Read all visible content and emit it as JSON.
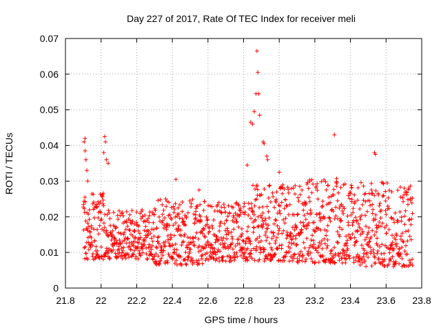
{
  "chart_data": {
    "type": "scatter",
    "title": "Day 227 of 2017, Rate Of TEC Index for receiver meli",
    "xlabel": "GPS time / hours",
    "ylabel": "ROTI / TECUs",
    "xlim": [
      21.8,
      23.8
    ],
    "ylim": [
      0,
      0.07
    ],
    "x_ticks": [
      "21.8",
      "22",
      "22.2",
      "22.4",
      "22.6",
      "22.8",
      "23",
      "23.2",
      "23.4",
      "23.6",
      "23.8"
    ],
    "y_ticks": [
      "0",
      "0.01",
      "0.02",
      "0.03",
      "0.04",
      "0.05",
      "0.06",
      "0.07"
    ],
    "grid": true,
    "marker": "+",
    "color": "#ff0000",
    "series": [
      {
        "name": "ROTI",
        "x_start": 21.9,
        "x_end": 23.75,
        "points": [
          [
            21.905,
            0.041
          ],
          [
            21.91,
            0.042
          ],
          [
            21.91,
            0.0385
          ],
          [
            21.915,
            0.036
          ],
          [
            21.92,
            0.033
          ],
          [
            21.925,
            0.03
          ],
          [
            22.02,
            0.0425
          ],
          [
            22.025,
            0.041
          ],
          [
            22.015,
            0.038
          ],
          [
            22.03,
            0.036
          ],
          [
            22.04,
            0.035
          ],
          [
            22.42,
            0.0305
          ],
          [
            22.55,
            0.0275
          ],
          [
            22.82,
            0.0345
          ],
          [
            22.84,
            0.0465
          ],
          [
            22.85,
            0.046
          ],
          [
            22.86,
            0.0495
          ],
          [
            22.87,
            0.0545
          ],
          [
            22.875,
            0.0665
          ],
          [
            22.88,
            0.0605
          ],
          [
            22.885,
            0.0545
          ],
          [
            22.89,
            0.0485
          ],
          [
            22.91,
            0.041
          ],
          [
            22.915,
            0.0405
          ],
          [
            22.93,
            0.037
          ],
          [
            22.935,
            0.036
          ],
          [
            23.0,
            0.0325
          ],
          [
            23.31,
            0.043
          ],
          [
            23.535,
            0.038
          ],
          [
            23.54,
            0.0375
          ]
        ],
        "bands": [
          {
            "x0": 21.9,
            "x1": 22.05,
            "low": 0.008,
            "high": 0.027
          },
          {
            "x0": 22.05,
            "x1": 22.3,
            "low": 0.008,
            "high": 0.022
          },
          {
            "x0": 22.3,
            "x1": 22.6,
            "low": 0.0065,
            "high": 0.025
          },
          {
            "x0": 22.6,
            "x1": 22.85,
            "low": 0.0075,
            "high": 0.024
          },
          {
            "x0": 22.85,
            "x1": 23.1,
            "low": 0.0075,
            "high": 0.029
          },
          {
            "x0": 23.1,
            "x1": 23.45,
            "low": 0.007,
            "high": 0.031
          },
          {
            "x0": 23.45,
            "x1": 23.75,
            "low": 0.006,
            "high": 0.03
          }
        ],
        "n_band_points": 1500,
        "seed": 227
      }
    ]
  }
}
